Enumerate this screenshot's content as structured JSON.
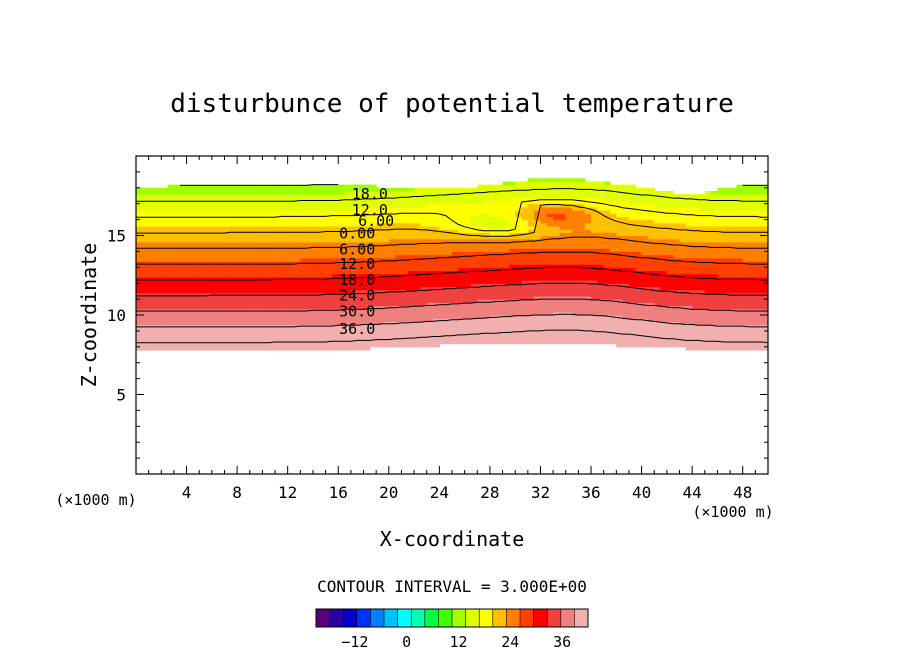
{
  "title": "disturbunce of potential temperature",
  "chart_data": {
    "type": "contour",
    "title": "disturbunce of potential temperature",
    "xlabel": "X-coordinate",
    "ylabel": "Z-coordinate",
    "x_unit": "(×1000 m)",
    "z_unit": "(×1000 m)",
    "xlim": [
      0,
      50
    ],
    "ylim": [
      0,
      20
    ],
    "x_ticks": [
      4,
      8,
      12,
      16,
      20,
      24,
      28,
      32,
      36,
      40,
      44,
      48
    ],
    "y_ticks": [
      5,
      10,
      15
    ],
    "contour_interval_text": "CONTOUR INTERVAL = 3.000E+00",
    "contour_interval": 3,
    "contour_labels": [
      {
        "text": "18.0",
        "value": 18,
        "x": 18.5,
        "z": 17.3
      },
      {
        "text": "12.0",
        "value": 12,
        "x": 18.5,
        "z": 16.3
      },
      {
        "text": "6.00",
        "value": 6,
        "x": 19.0,
        "z": 15.6
      },
      {
        "text": "0.00",
        "value": 0,
        "x": 17.5,
        "z": 14.8
      },
      {
        "text": "6.00",
        "value": 6,
        "x": 17.5,
        "z": 13.8
      },
      {
        "text": "12.0",
        "value": 12,
        "x": 17.5,
        "z": 12.9
      },
      {
        "text": "18.0",
        "value": 18,
        "x": 17.5,
        "z": 11.9
      },
      {
        "text": "24.0",
        "value": 24,
        "x": 17.5,
        "z": 10.9
      },
      {
        "text": "30.0",
        "value": 30,
        "x": 17.5,
        "z": 9.9
      },
      {
        "text": "36.0",
        "value": 36,
        "x": 17.5,
        "z": 8.8
      }
    ],
    "colorbar": {
      "ticks": [
        -12,
        0,
        12,
        24,
        36
      ],
      "range": [
        -21,
        42
      ],
      "colors": [
        "#5a007d",
        "#2a00a0",
        "#0000c8",
        "#0030ff",
        "#0080ff",
        "#00c0ff",
        "#00ffff",
        "#00ffb0",
        "#00ff40",
        "#40ff00",
        "#a0ff00",
        "#e0ff00",
        "#ffff00",
        "#ffc000",
        "#ff8000",
        "#ff4000",
        "#ff0000",
        "#f04040",
        "#f08080",
        "#f0b0b0"
      ]
    },
    "grid": false,
    "legend": "colorbar-bottom"
  }
}
